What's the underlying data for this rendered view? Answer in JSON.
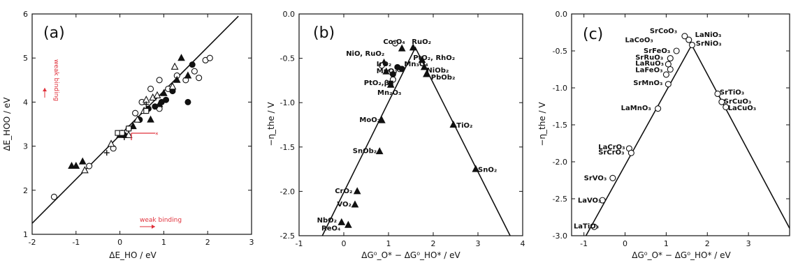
{
  "chart_data": [
    {
      "panel_label": "(a)",
      "type": "scatter",
      "xlabel": "ΔE_HO / eV",
      "ylabel": "ΔE_HOO / eV",
      "xlim": [
        -2,
        3
      ],
      "ylim": [
        1,
        6
      ],
      "xticks": [
        "-2",
        "-1",
        "0",
        "1",
        "2",
        "3"
      ],
      "yticks": [
        "1",
        "2",
        "3",
        "4",
        "5",
        "6"
      ],
      "fit_line": [
        [
          -2,
          1.25
        ],
        [
          2.7,
          5.95
        ]
      ],
      "annotations": [
        "weak binding",
        "weak binding",
        "*"
      ],
      "series": [
        {
          "marker": "open-circle",
          "points": [
            [
              -1.5,
              1.85
            ],
            [
              -0.7,
              2.55
            ],
            [
              -0.15,
              2.95
            ],
            [
              0.05,
              3.3
            ],
            [
              0.2,
              3.4
            ],
            [
              0.35,
              3.75
            ],
            [
              0.5,
              4.0
            ],
            [
              0.7,
              4.3
            ],
            [
              0.9,
              4.5
            ],
            [
              1.1,
              4.3
            ],
            [
              1.3,
              4.6
            ],
            [
              1.5,
              4.5
            ],
            [
              1.7,
              4.7
            ],
            [
              1.8,
              4.55
            ],
            [
              1.95,
              4.95
            ],
            [
              2.05,
              5.0
            ],
            [
              0.9,
              3.85
            ]
          ]
        },
        {
          "marker": "filled-circle",
          "points": [
            [
              0.1,
              3.25
            ],
            [
              0.45,
              3.6
            ],
            [
              0.65,
              3.85
            ],
            [
              0.8,
              3.9
            ],
            [
              0.95,
              4.0
            ],
            [
              1.05,
              4.05
            ],
            [
              1.2,
              4.25
            ],
            [
              1.55,
              4.0
            ],
            [
              1.65,
              4.85
            ]
          ]
        },
        {
          "marker": "open-triangle",
          "points": [
            [
              -0.8,
              2.45
            ],
            [
              -0.2,
              3.05
            ],
            [
              0.2,
              3.25
            ],
            [
              0.4,
              3.6
            ],
            [
              0.55,
              3.8
            ],
            [
              0.6,
              4.05
            ],
            [
              0.75,
              4.1
            ],
            [
              0.85,
              4.15
            ],
            [
              1.2,
              4.35
            ],
            [
              1.25,
              4.8
            ]
          ]
        },
        {
          "marker": "filled-triangle",
          "points": [
            [
              -1.1,
              2.55
            ],
            [
              -1.0,
              2.55
            ],
            [
              -0.85,
              2.65
            ],
            [
              0.0,
              3.25
            ],
            [
              0.3,
              3.45
            ],
            [
              0.7,
              3.6
            ],
            [
              0.9,
              3.95
            ],
            [
              1.0,
              4.2
            ],
            [
              1.3,
              4.5
            ],
            [
              1.4,
              5.0
            ],
            [
              1.55,
              4.6
            ]
          ]
        },
        {
          "marker": "open-square",
          "points": [
            [
              -0.05,
              3.3
            ],
            [
              0.05,
              3.3
            ],
            [
              0.2,
              3.4
            ],
            [
              0.6,
              3.8
            ]
          ]
        },
        {
          "marker": "plus",
          "points": [
            [
              -0.3,
              2.85
            ],
            [
              0.1,
              3.2
            ],
            [
              0.6,
              3.95
            ]
          ]
        }
      ]
    },
    {
      "panel_label": "(b)",
      "type": "scatter",
      "xlabel": "ΔG⁰_O* − ΔG⁰_HO* / eV",
      "ylabel": "−η_the / V",
      "xlim": [
        -1,
        4
      ],
      "ylim": [
        -2.5,
        0.0
      ],
      "xticks": [
        "-1",
        "0",
        "1",
        "2",
        "3",
        "4"
      ],
      "yticks": [
        "0.0",
        "-0.5",
        "-1.0",
        "-1.5",
        "-2.0",
        "-2.5"
      ],
      "volcano_line": [
        [
          -0.48,
          -2.5
        ],
        [
          1.6,
          -0.38
        ],
        [
          3.72,
          -2.5
        ]
      ],
      "series": [
        {
          "marker": "filled-triangle",
          "points": [
            [
              1.3,
              -0.39
            ],
            [
              1.55,
              -0.38
            ],
            [
              1.75,
              -0.52
            ],
            [
              1.8,
              -0.6
            ],
            [
              1.85,
              -0.68
            ],
            [
              0.9,
              -0.55
            ],
            [
              0.95,
              -0.65
            ],
            [
              1.05,
              -0.8
            ],
            [
              0.85,
              -1.2
            ],
            [
              0.8,
              -1.55
            ],
            [
              0.3,
              -2.0
            ],
            [
              0.25,
              -2.15
            ],
            [
              -0.05,
              -2.35
            ],
            [
              0.1,
              -2.38
            ],
            [
              2.45,
              -1.25
            ],
            [
              2.95,
              -1.75
            ]
          ]
        },
        {
          "marker": "open-circle",
          "points": [
            [
              1.15,
              -0.33
            ],
            [
              0.85,
              -0.58
            ],
            [
              1.05,
              -0.65
            ],
            [
              1.1,
              -0.74
            ],
            [
              1.25,
              -0.62
            ]
          ]
        },
        {
          "marker": "filled-circle",
          "points": [
            [
              1.1,
              -0.68
            ],
            [
              1.2,
              -0.6
            ],
            [
              1.3,
              -0.62
            ]
          ]
        },
        {
          "marker": "filled-square",
          "points": [
            [
              1.05,
              -0.78
            ]
          ]
        }
      ],
      "labels": [
        {
          "text": "Co₃O₄",
          "x": 0.88,
          "y": -0.34
        },
        {
          "text": "RuO₂",
          "x": 1.52,
          "y": -0.34
        },
        {
          "text": "NiO, RuO₂",
          "x": 0.05,
          "y": -0.47
        },
        {
          "text": "PtO₂, RhO₂",
          "x": 1.55,
          "y": -0.52
        },
        {
          "text": "IrO₂",
          "x": 0.73,
          "y": -0.59
        },
        {
          "text": "Mn₃O₄",
          "x": 1.35,
          "y": -0.59
        },
        {
          "text": "MnO₂",
          "x": 0.73,
          "y": -0.67
        },
        {
          "text": "NiOb₂",
          "x": 1.85,
          "y": -0.66
        },
        {
          "text": "PbOb₂",
          "x": 1.95,
          "y": -0.74
        },
        {
          "text": "PtO₂,βr",
          "x": 0.45,
          "y": -0.8
        },
        {
          "text": "Mn₂O₃",
          "x": 0.75,
          "y": -0.91
        },
        {
          "text": "MoO₂",
          "x": 0.35,
          "y": -1.22
        },
        {
          "text": "TiO₂",
          "x": 2.52,
          "y": -1.28
        },
        {
          "text": "SnOb₂",
          "x": 0.2,
          "y": -1.57
        },
        {
          "text": "SnO₂",
          "x": 3.0,
          "y": -1.78
        },
        {
          "text": "CrO₂",
          "x": -0.2,
          "y": -2.02
        },
        {
          "text": "VO₂",
          "x": -0.15,
          "y": -2.17
        },
        {
          "text": "NbO₂",
          "x": -0.6,
          "y": -2.35
        },
        {
          "text": "ReO₄",
          "x": -0.5,
          "y": -2.44
        }
      ]
    },
    {
      "panel_label": "(c)",
      "type": "scatter",
      "xlabel": "ΔG⁰_O* − ΔG⁰_HO* / eV",
      "ylabel": "−η_the / V",
      "xlim": [
        -1.3,
        4.0
      ],
      "ylim": [
        -3.0,
        0.0
      ],
      "xticks": [
        "-1",
        "0",
        "1",
        "2",
        "3"
      ],
      "yticks": [
        "0.0",
        "-0.5",
        "-1.0",
        "-1.5",
        "-2.0",
        "-2.5",
        "-3.0"
      ],
      "volcano_line": [
        [
          -0.95,
          -3.0
        ],
        [
          1.62,
          -0.42
        ],
        [
          4.0,
          -2.9
        ]
      ],
      "series": [
        {
          "marker": "open-circle",
          "points": [
            [
              1.45,
              -0.3
            ],
            [
              1.55,
              -0.35
            ],
            [
              1.63,
              -0.42
            ],
            [
              1.25,
              -0.5
            ],
            [
              1.1,
              -0.6
            ],
            [
              1.05,
              -0.68
            ],
            [
              1.1,
              -0.75
            ],
            [
              1.0,
              -0.82
            ],
            [
              1.05,
              -0.95
            ],
            [
              2.25,
              -1.08
            ],
            [
              2.35,
              -1.19
            ],
            [
              2.45,
              -1.26
            ],
            [
              0.8,
              -1.28
            ],
            [
              0.1,
              -1.82
            ],
            [
              0.15,
              -1.88
            ],
            [
              -0.3,
              -2.22
            ],
            [
              -0.55,
              -2.52
            ],
            [
              -0.75,
              -2.88
            ]
          ]
        }
      ],
      "labels": [
        {
          "text": "SrCoO₃",
          "x": 0.6,
          "y": -0.26
        },
        {
          "text": "LaNiO₃",
          "x": 1.7,
          "y": -0.31
        },
        {
          "text": "LaCoO₃",
          "x": 0.0,
          "y": -0.38
        },
        {
          "text": "SrNiO₃",
          "x": 1.72,
          "y": -0.43
        },
        {
          "text": "SrFeO₃",
          "x": 0.45,
          "y": -0.53
        },
        {
          "text": "SrRuO₃",
          "x": 0.25,
          "y": -0.62
        },
        {
          "text": "LaRuO₃",
          "x": 0.25,
          "y": -0.7
        },
        {
          "text": "LaFeO₃",
          "x": 0.25,
          "y": -0.79
        },
        {
          "text": "SrMnO₃",
          "x": 0.2,
          "y": -0.96
        },
        {
          "text": "SrTiO₃",
          "x": 2.3,
          "y": -1.09
        },
        {
          "text": "SrCuO₃",
          "x": 2.4,
          "y": -1.21
        },
        {
          "text": "LaCuO₃",
          "x": 2.5,
          "y": -1.3
        },
        {
          "text": "LaMnO₃",
          "x": -0.1,
          "y": -1.3
        },
        {
          "text": "LaCrO₃",
          "x": -0.65,
          "y": -1.83
        },
        {
          "text": "SrCrO₃",
          "x": -0.65,
          "y": -1.9
        },
        {
          "text": "SrVO₃",
          "x": -1.0,
          "y": -2.25
        },
        {
          "text": "LaVO₃",
          "x": -1.15,
          "y": -2.55
        },
        {
          "text": "LaTiO₃",
          "x": -1.25,
          "y": -2.9
        }
      ]
    }
  ]
}
